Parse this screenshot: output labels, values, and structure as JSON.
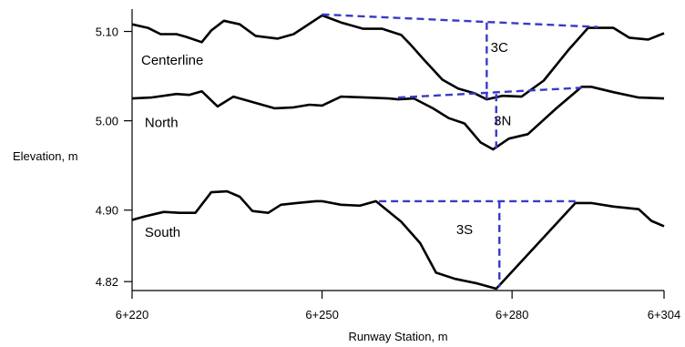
{
  "chart_data": {
    "type": "line",
    "xlabel": "Runway Station, m",
    "ylabel": "Elevation, m",
    "xlim": [
      220,
      304
    ],
    "ylim": [
      4.81,
      5.125
    ],
    "x_ticks": [
      {
        "value": 220,
        "label": "6+220"
      },
      {
        "value": 250,
        "label": "6+250"
      },
      {
        "value": 280,
        "label": "6+280"
      },
      {
        "value": 304,
        "label": "6+304"
      }
    ],
    "y_ticks": [
      {
        "value": 4.82,
        "label": "4.82"
      },
      {
        "value": 4.9,
        "label": "4.90"
      },
      {
        "value": 5.0,
        "label": "5.00"
      },
      {
        "value": 5.1,
        "label": "5.10"
      }
    ],
    "grid": false,
    "legend": "none",
    "series": [
      {
        "name": "Centerline",
        "label_at": [
          220,
          5.063
        ],
        "x": [
          220,
          222.5,
          224.5,
          227,
          228.5,
          231,
          232.5,
          234.5,
          237,
          239.5,
          243,
          245.5,
          250,
          253,
          256.5,
          257.5,
          259.5,
          262.5,
          264,
          266,
          269,
          271.5,
          274,
          276,
          278.5,
          281.5,
          285,
          289,
          292,
          296,
          298.5,
          301.5,
          304
        ],
        "y": [
          5.108,
          5.104,
          5.097,
          5.097,
          5.094,
          5.088,
          5.101,
          5.112,
          5.108,
          5.095,
          5.092,
          5.097,
          5.118,
          5.11,
          5.103,
          5.103,
          5.103,
          5.096,
          5.085,
          5.069,
          5.046,
          5.036,
          5.031,
          5.024,
          5.028,
          5.027,
          5.045,
          5.08,
          5.104,
          5.104,
          5.093,
          5.091,
          5.098
        ]
      },
      {
        "name": "North",
        "label_at": [
          222,
          4.993
        ],
        "x": [
          220,
          223,
          227,
          229,
          231,
          233.5,
          236,
          239.5,
          242.5,
          245.5,
          248,
          250,
          253,
          257,
          260.5,
          262,
          264.5,
          267.5,
          270,
          272.5,
          275,
          277,
          279.5,
          282.5,
          287,
          291,
          292.5,
          296,
          300,
          304
        ],
        "y": [
          5.025,
          5.026,
          5.03,
          5.029,
          5.033,
          5.016,
          5.027,
          5.02,
          5.014,
          5.015,
          5.018,
          5.017,
          5.027,
          5.026,
          5.025,
          5.024,
          5.025,
          5.014,
          5.003,
          4.997,
          4.976,
          4.968,
          4.98,
          4.985,
          5.014,
          5.038,
          5.038,
          5.032,
          5.026,
          5.025
        ]
      },
      {
        "name": "South",
        "label_at": [
          222,
          4.87
        ],
        "x": [
          220,
          222,
          225,
          227.5,
          230,
          232.5,
          235,
          237,
          239,
          241.5,
          243.5,
          246,
          249,
          250,
          253,
          256,
          258.5,
          262.5,
          265.5,
          268,
          271,
          274.5,
          277.5,
          290,
          292.5,
          296,
          300,
          302,
          304
        ],
        "y": [
          4.889,
          4.893,
          4.898,
          4.897,
          4.897,
          4.92,
          4.921,
          4.915,
          4.899,
          4.897,
          4.906,
          4.908,
          4.91,
          4.91,
          4.906,
          4.905,
          4.91,
          4.887,
          4.863,
          4.83,
          4.823,
          4.818,
          4.812,
          4.908,
          4.908,
          4.904,
          4.901,
          4.888,
          4.882
        ]
      }
    ],
    "annotations": [
      {
        "label": "3C",
        "label_at": [
          278,
          5.077
        ],
        "top": [
          [
            250,
            5.119
          ],
          [
            293.5,
            5.105
          ]
        ],
        "drop": [
          [
            276,
            5.11
          ],
          [
            276,
            5.024
          ]
        ]
      },
      {
        "label": "3N",
        "label_at": [
          278.5,
          4.995
        ],
        "top": [
          [
            262,
            5.026
          ],
          [
            291,
            5.037
          ]
        ],
        "drop": [
          [
            277.5,
            5.03
          ],
          [
            277.5,
            4.967
          ]
        ]
      },
      {
        "label": "3S",
        "label_at": [
          272.5,
          4.873
        ],
        "top": [
          [
            259,
            4.91
          ],
          [
            290,
            4.91
          ]
        ],
        "drop": [
          [
            278,
            4.91
          ],
          [
            278,
            4.814
          ]
        ]
      }
    ]
  }
}
